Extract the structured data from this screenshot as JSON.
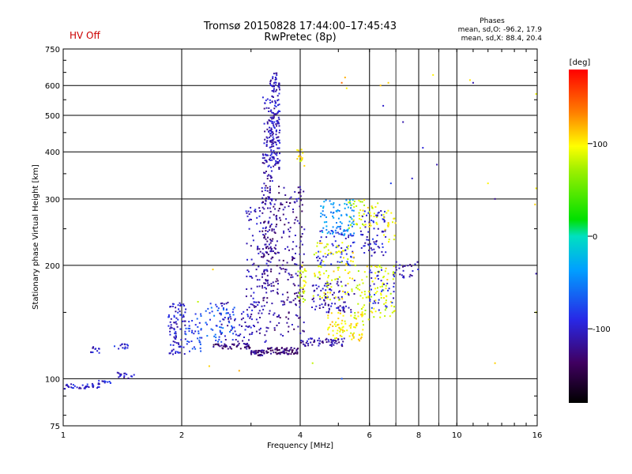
{
  "header": {
    "title_line1": "Tromsø 20150828 17:44:00–17:45:43",
    "title_line2": "RwPretec (8p)",
    "hv_status": "HV Off",
    "hv_color": "#cc0000",
    "stats_title": "Phases",
    "stats_o": "mean, sd,O: -96.2, 17.9",
    "stats_x": "mean, sd,X: 88.4, 20.4"
  },
  "chart_data": {
    "type": "scatter",
    "xlabel": "Frequency [MHz]",
    "ylabel": "Stationary phase Virtual Height [km]",
    "xscale": "log",
    "yscale": "log",
    "xlim": [
      1,
      16
    ],
    "ylim": [
      75,
      750
    ],
    "x_ticks": [
      1,
      2,
      4,
      6,
      8,
      10,
      16
    ],
    "x_tick_labels": [
      "1",
      "2",
      "4",
      "6",
      "8",
      "10",
      "16"
    ],
    "x_grid": [
      1,
      2,
      4,
      6,
      8,
      10
    ],
    "x_minor_grid": [
      7,
      9
    ],
    "y_ticks": [
      75,
      100,
      200,
      300,
      400,
      500,
      600,
      750
    ],
    "y_tick_labels": [
      "75",
      "100",
      "200",
      "300",
      "400",
      "500",
      "600",
      "750"
    ],
    "y_grid": [
      100,
      200,
      300,
      400,
      500,
      600
    ],
    "grid": true,
    "colorbar": {
      "label": "[deg]",
      "range": [
        -180,
        180
      ],
      "ticks": [
        100,
        0,
        -100
      ],
      "tick_labels": [
        "100",
        "0",
        "-100"
      ]
    },
    "clusters": [
      {
        "f": [
          1.0,
          1.25
        ],
        "h": [
          94,
          97
        ],
        "phase": -100,
        "n": 40
      },
      {
        "f": [
          1.23,
          1.33
        ],
        "h": [
          97,
          99
        ],
        "phase": -95,
        "n": 12
      },
      {
        "f": [
          1.17,
          1.24
        ],
        "h": [
          117,
          122
        ],
        "phase": -100,
        "n": 12
      },
      {
        "f": [
          1.35,
          1.47
        ],
        "h": [
          120,
          124
        ],
        "phase": -95,
        "n": 14
      },
      {
        "f": [
          1.37,
          1.52
        ],
        "h": [
          100,
          104
        ],
        "phase": -100,
        "n": 16
      },
      {
        "f": [
          1.85,
          2.05
        ],
        "h": [
          115,
          160
        ],
        "phase": -100,
        "n": 90
      },
      {
        "f": [
          2.05,
          2.25
        ],
        "h": [
          118,
          150
        ],
        "phase": -80,
        "n": 40
      },
      {
        "f": [
          2.3,
          2.75
        ],
        "h": [
          125,
          160
        ],
        "phase": -70,
        "n": 60
      },
      {
        "f": [
          2.5,
          3.3
        ],
        "h": [
          125,
          160
        ],
        "phase": -110,
        "n": 60
      },
      {
        "f": [
          2.4,
          3.0
        ],
        "h": [
          120,
          124
        ],
        "phase": -130,
        "n": 50
      },
      {
        "f": [
          2.9,
          3.2
        ],
        "h": [
          130,
          290
        ],
        "phase": -105,
        "n": 80
      },
      {
        "f": [
          3.0,
          3.3
        ],
        "h": [
          115,
          119
        ],
        "phase": -125,
        "n": 40
      },
      {
        "f": [
          3.2,
          3.4
        ],
        "h": [
          170,
          560
        ],
        "phase": -110,
        "n": 150
      },
      {
        "f": [
          3.35,
          3.55
        ],
        "h": [
          360,
          650
        ],
        "phase": -105,
        "n": 170
      },
      {
        "f": [
          3.2,
          3.6
        ],
        "h": [
          130,
          330
        ],
        "phase": -125,
        "n": 120
      },
      {
        "f": [
          3.3,
          3.95
        ],
        "h": [
          116,
          121
        ],
        "phase": -130,
        "n": 70
      },
      {
        "f": [
          3.6,
          4.1
        ],
        "h": [
          130,
          330
        ],
        "phase": -120,
        "n": 140
      },
      {
        "f": [
          3.95,
          4.15
        ],
        "h": [
          160,
          200
        ],
        "phase": 85,
        "n": 30
      },
      {
        "f": [
          3.9,
          4.1
        ],
        "h": [
          365,
          410
        ],
        "phase": 100,
        "n": 14
      },
      {
        "f": [
          4.0,
          5.2
        ],
        "h": [
          122,
          128
        ],
        "phase": -115,
        "n": 60
      },
      {
        "f": [
          4.2,
          5.5
        ],
        "h": [
          150,
          185
        ],
        "phase": -110,
        "n": 90
      },
      {
        "f": [
          4.4,
          5.5
        ],
        "h": [
          200,
          250
        ],
        "phase": -90,
        "n": 70
      },
      {
        "f": [
          4.5,
          5.5
        ],
        "h": [
          240,
          300
        ],
        "phase": -40,
        "n": 80
      },
      {
        "f": [
          4.3,
          5.5
        ],
        "h": [
          160,
          230
        ],
        "phase": 95,
        "n": 90
      },
      {
        "f": [
          4.7,
          5.8
        ],
        "h": [
          126,
          150
        ],
        "phase": 100,
        "n": 80
      },
      {
        "f": [
          5.3,
          6.3
        ],
        "h": [
          250,
          300
        ],
        "phase": 90,
        "n": 50
      },
      {
        "f": [
          5.5,
          7.0
        ],
        "h": [
          140,
          200
        ],
        "phase": 90,
        "n": 100
      },
      {
        "f": [
          5.7,
          6.6
        ],
        "h": [
          210,
          280
        ],
        "phase": -100,
        "n": 70
      },
      {
        "f": [
          6.0,
          7.0
        ],
        "h": [
          150,
          195
        ],
        "phase": -90,
        "n": 40
      },
      {
        "f": [
          6.5,
          7.0
        ],
        "h": [
          230,
          280
        ],
        "phase": 95,
        "n": 20
      },
      {
        "f": [
          7.0,
          8.0
        ],
        "h": [
          185,
          205
        ],
        "phase": -110,
        "n": 25
      }
    ],
    "sparse_points": [
      {
        "f": 5.2,
        "h": 630,
        "phase": 120
      },
      {
        "f": 5.25,
        "h": 590,
        "phase": 100
      },
      {
        "f": 5.1,
        "h": 610,
        "phase": 140
      },
      {
        "f": 6.7,
        "h": 610,
        "phase": 110
      },
      {
        "f": 6.4,
        "h": 600,
        "phase": 115
      },
      {
        "f": 8.2,
        "h": 410,
        "phase": -95
      },
      {
        "f": 8.7,
        "h": 640,
        "phase": 100
      },
      {
        "f": 10.8,
        "h": 620,
        "phase": 105
      },
      {
        "f": 11.0,
        "h": 610,
        "phase": -110
      },
      {
        "f": 12.0,
        "h": 330,
        "phase": 100
      },
      {
        "f": 12.5,
        "h": 300,
        "phase": -120
      },
      {
        "f": 12.5,
        "h": 110,
        "phase": 110
      },
      {
        "f": 15.9,
        "h": 570,
        "phase": 95
      },
      {
        "f": 15.9,
        "h": 320,
        "phase": 100
      },
      {
        "f": 15.8,
        "h": 290,
        "phase": 110
      },
      {
        "f": 15.9,
        "h": 190,
        "phase": -110
      },
      {
        "f": 15.9,
        "h": 150,
        "phase": 90
      },
      {
        "f": 6.5,
        "h": 530,
        "phase": -100
      },
      {
        "f": 7.3,
        "h": 480,
        "phase": -110
      },
      {
        "f": 7.7,
        "h": 340,
        "phase": -100
      },
      {
        "f": 6.8,
        "h": 330,
        "phase": -80
      },
      {
        "f": 8.9,
        "h": 370,
        "phase": -110
      },
      {
        "f": 2.2,
        "h": 160,
        "phase": 80
      },
      {
        "f": 2.4,
        "h": 195,
        "phase": 110
      },
      {
        "f": 5.1,
        "h": 100,
        "phase": -70
      },
      {
        "f": 4.3,
        "h": 110,
        "phase": 80
      },
      {
        "f": 2.8,
        "h": 105,
        "phase": 120
      },
      {
        "f": 2.35,
        "h": 108,
        "phase": 110
      }
    ]
  }
}
